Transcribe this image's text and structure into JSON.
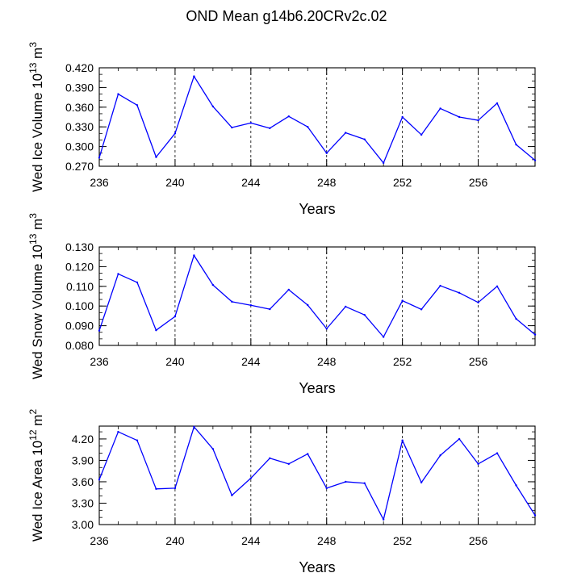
{
  "title": "OND Mean g14b6.20CRv2c.02",
  "colors": {
    "series": "#0000ff",
    "axis": "#000000",
    "gridline": "#000000"
  },
  "chart_data": [
    {
      "type": "line",
      "ylabel": {
        "text": "Wed Ice Volume 10",
        "exp": "13",
        "unit": " m",
        "unit_exp": "3"
      },
      "xlabel": "Years",
      "xlim": [
        236,
        259
      ],
      "ylim": [
        0.27,
        0.42
      ],
      "xticks": [
        236,
        240,
        244,
        248,
        252,
        256
      ],
      "xtick_labels": [
        "236",
        "240",
        "244",
        "248",
        "252",
        "256"
      ],
      "yticks": [
        0.27,
        0.3,
        0.33,
        0.36,
        0.39,
        0.42
      ],
      "ytick_labels": [
        "0.270",
        "0.300",
        "0.330",
        "0.360",
        "0.390",
        "0.420"
      ],
      "gridlines_x": [
        240,
        244,
        248,
        252,
        256
      ],
      "x": [
        236,
        237,
        238,
        239,
        240,
        241,
        242,
        243,
        244,
        245,
        246,
        247,
        248,
        249,
        250,
        251,
        252,
        253,
        254,
        255,
        256,
        257,
        258,
        259
      ],
      "series": [
        {
          "name": "Wed Ice Volume",
          "values": [
            0.283,
            0.38,
            0.363,
            0.284,
            0.32,
            0.407,
            0.361,
            0.329,
            0.336,
            0.328,
            0.346,
            0.33,
            0.29,
            0.321,
            0.311,
            0.275,
            0.345,
            0.318,
            0.358,
            0.345,
            0.34,
            0.366,
            0.303,
            0.279
          ]
        }
      ]
    },
    {
      "type": "line",
      "ylabel": {
        "text": "Wed Snow Volume 10",
        "exp": "13",
        "unit": " m",
        "unit_exp": "3"
      },
      "xlabel": "Years",
      "xlim": [
        236,
        259
      ],
      "ylim": [
        0.08,
        0.13
      ],
      "xticks": [
        236,
        240,
        244,
        248,
        252,
        256
      ],
      "xtick_labels": [
        "236",
        "240",
        "244",
        "248",
        "252",
        "256"
      ],
      "yticks": [
        0.08,
        0.09,
        0.1,
        0.11,
        0.12,
        0.13
      ],
      "ytick_labels": [
        "0.080",
        "0.090",
        "0.100",
        "0.110",
        "0.120",
        "0.130"
      ],
      "gridlines_x": [
        240,
        244,
        248,
        252,
        256
      ],
      "x": [
        236,
        237,
        238,
        239,
        240,
        241,
        242,
        243,
        244,
        245,
        246,
        247,
        248,
        249,
        250,
        251,
        252,
        253,
        254,
        255,
        256,
        257,
        258,
        259
      ],
      "series": [
        {
          "name": "Wed Snow Volume",
          "values": [
            0.0875,
            0.1163,
            0.112,
            0.0877,
            0.0947,
            0.1257,
            0.1107,
            0.1022,
            0.1004,
            0.0984,
            0.1083,
            0.1005,
            0.0885,
            0.0997,
            0.0955,
            0.0843,
            0.1027,
            0.0983,
            0.1103,
            0.1067,
            0.1018,
            0.11,
            0.0935,
            0.0855
          ]
        }
      ]
    },
    {
      "type": "line",
      "ylabel": {
        "text": "Wed Ice Area 10",
        "exp": "12",
        "unit": " m",
        "unit_exp": "2"
      },
      "xlabel": "Years",
      "xlim": [
        236,
        259
      ],
      "ylim": [
        3.0,
        4.38
      ],
      "xticks": [
        236,
        240,
        244,
        248,
        252,
        256
      ],
      "xtick_labels": [
        "236",
        "240",
        "244",
        "248",
        "252",
        "256"
      ],
      "yticks": [
        3.0,
        3.3,
        3.6,
        3.9,
        4.2
      ],
      "ytick_labels": [
        "3.00",
        "3.30",
        "3.60",
        "3.90",
        "4.20"
      ],
      "gridlines_x": [
        240,
        244,
        248,
        252,
        256
      ],
      "x": [
        236,
        237,
        238,
        239,
        240,
        241,
        242,
        243,
        244,
        245,
        246,
        247,
        248,
        249,
        250,
        251,
        252,
        253,
        254,
        255,
        256,
        257,
        258,
        259
      ],
      "series": [
        {
          "name": "Wed Ice Area",
          "values": [
            3.63,
            4.3,
            4.18,
            3.5,
            3.51,
            4.37,
            4.06,
            3.41,
            3.65,
            3.93,
            3.85,
            3.99,
            3.51,
            3.6,
            3.58,
            3.07,
            4.18,
            3.59,
            3.97,
            4.2,
            3.85,
            4.0,
            3.55,
            3.13
          ]
        }
      ]
    }
  ]
}
